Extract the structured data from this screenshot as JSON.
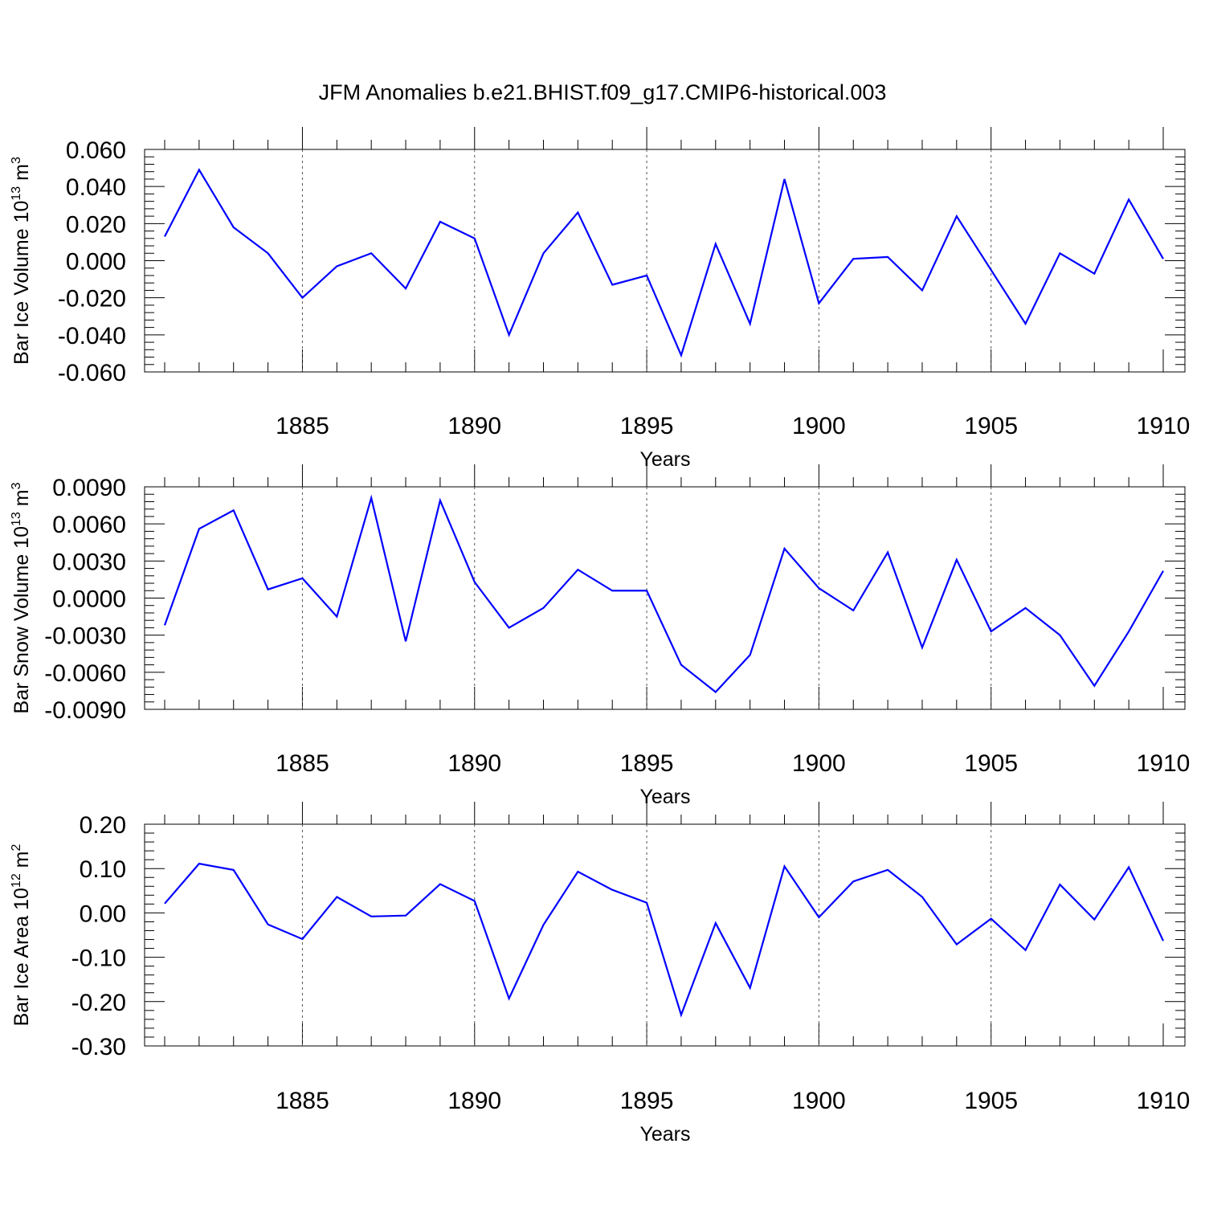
{
  "title": "JFM Anomalies b.e21.BHIST.f09_g17.CMIP6-historical.003",
  "colors": {
    "line": "#0000ff",
    "axis": "#000000",
    "grid": "#555555"
  },
  "chart_data": [
    {
      "type": "line",
      "name": "ice-volume",
      "ylabel": "Bar Ice Volume",
      "ylabel_unit_base": "10",
      "ylabel_unit_exp": "13",
      "ylabel_unit_tail": "m",
      "ylabel_unit_tail_exp": "3",
      "xlabel": "Years",
      "xlim": [
        1881,
        1910
      ],
      "ylim": [
        -0.06,
        0.06
      ],
      "yticks": [
        "-0.060",
        "-0.040",
        "-0.020",
        "0.000",
        "0.020",
        "0.040",
        "0.060"
      ],
      "ytick_values": [
        -0.06,
        -0.04,
        -0.02,
        0.0,
        0.02,
        0.04,
        0.06
      ],
      "xticks": [
        "1885",
        "1890",
        "1895",
        "1900",
        "1905",
        "1910"
      ],
      "xtick_values": [
        1885,
        1890,
        1895,
        1900,
        1905,
        1910
      ],
      "grid_x": true,
      "x": [
        1881,
        1882,
        1883,
        1884,
        1885,
        1886,
        1887,
        1888,
        1889,
        1890,
        1891,
        1892,
        1893,
        1894,
        1895,
        1896,
        1897,
        1898,
        1899,
        1900,
        1901,
        1902,
        1903,
        1904,
        1905,
        1906,
        1907,
        1908,
        1909,
        1910
      ],
      "values": [
        0.013,
        0.049,
        0.018,
        0.004,
        -0.02,
        -0.003,
        0.004,
        -0.015,
        0.021,
        0.012,
        -0.04,
        0.004,
        0.026,
        -0.013,
        -0.008,
        -0.051,
        0.009,
        -0.034,
        0.044,
        -0.023,
        0.001,
        0.002,
        -0.016,
        0.024,
        -0.005,
        -0.034,
        0.004,
        -0.007,
        0.033,
        0.001
      ]
    },
    {
      "type": "line",
      "name": "snow-volume",
      "ylabel": "Bar Snow Volume",
      "ylabel_unit_base": "10",
      "ylabel_unit_exp": "13",
      "ylabel_unit_tail": "m",
      "ylabel_unit_tail_exp": "3",
      "xlabel": "Years",
      "xlim": [
        1881,
        1910
      ],
      "ylim": [
        -0.009,
        0.009
      ],
      "yticks": [
        "-0.0090",
        "-0.0060",
        "-0.0030",
        "0.0000",
        "0.0030",
        "0.0060",
        "0.0090"
      ],
      "ytick_values": [
        -0.009,
        -0.006,
        -0.003,
        0.0,
        0.003,
        0.006,
        0.009
      ],
      "xticks": [
        "1885",
        "1890",
        "1895",
        "1900",
        "1905",
        "1910"
      ],
      "xtick_values": [
        1885,
        1890,
        1895,
        1900,
        1905,
        1910
      ],
      "grid_x": true,
      "x": [
        1881,
        1882,
        1883,
        1884,
        1885,
        1886,
        1887,
        1888,
        1889,
        1890,
        1891,
        1892,
        1893,
        1894,
        1895,
        1896,
        1897,
        1898,
        1899,
        1900,
        1901,
        1902,
        1903,
        1904,
        1905,
        1906,
        1907,
        1908,
        1909,
        1910
      ],
      "values": [
        -0.0022,
        0.0056,
        0.0071,
        0.0007,
        0.0016,
        -0.0015,
        0.0081,
        -0.0035,
        0.0079,
        0.0013,
        -0.0024,
        -0.0008,
        0.0023,
        0.0006,
        0.0006,
        -0.0054,
        -0.0076,
        -0.0046,
        0.004,
        0.0008,
        -0.001,
        0.0037,
        -0.004,
        0.0031,
        -0.0027,
        -0.0008,
        -0.003,
        -0.0071,
        -0.0027,
        0.0022
      ]
    },
    {
      "type": "line",
      "name": "ice-area",
      "ylabel": "Bar Ice Area",
      "ylabel_unit_base": "10",
      "ylabel_unit_exp": "12",
      "ylabel_unit_tail": "m",
      "ylabel_unit_tail_exp": "2",
      "xlabel": "Years",
      "xlim": [
        1881,
        1910
      ],
      "ylim": [
        -0.3,
        0.2
      ],
      "yticks": [
        "-0.30",
        "-0.20",
        "-0.10",
        "0.00",
        "0.10",
        "0.20"
      ],
      "ytick_values": [
        -0.3,
        -0.2,
        -0.1,
        0.0,
        0.1,
        0.2
      ],
      "xticks": [
        "1885",
        "1890",
        "1895",
        "1900",
        "1905",
        "1910"
      ],
      "xtick_values": [
        1885,
        1890,
        1895,
        1900,
        1905,
        1910
      ],
      "grid_x": true,
      "x": [
        1881,
        1882,
        1883,
        1884,
        1885,
        1886,
        1887,
        1888,
        1889,
        1890,
        1891,
        1892,
        1893,
        1894,
        1895,
        1896,
        1897,
        1898,
        1899,
        1900,
        1901,
        1902,
        1903,
        1904,
        1905,
        1906,
        1907,
        1908,
        1909,
        1910
      ],
      "values": [
        0.021,
        0.111,
        0.097,
        -0.026,
        -0.059,
        0.036,
        -0.008,
        -0.006,
        0.065,
        0.027,
        -0.193,
        -0.027,
        0.093,
        0.052,
        0.023,
        -0.23,
        -0.023,
        -0.169,
        0.105,
        -0.01,
        0.071,
        0.097,
        0.036,
        -0.071,
        -0.013,
        -0.084,
        0.064,
        -0.015,
        0.103,
        -0.063
      ]
    }
  ]
}
